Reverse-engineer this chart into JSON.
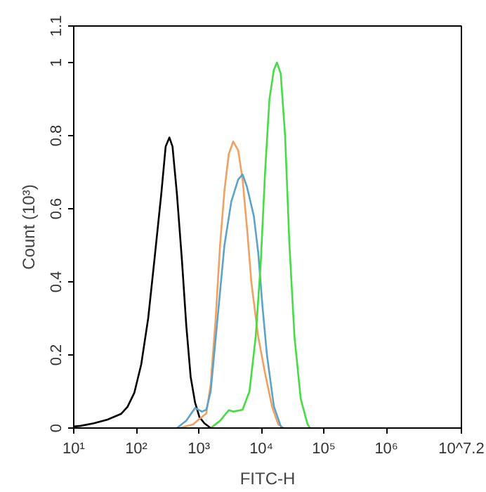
{
  "chart_data": {
    "type": "line",
    "xlabel": "FITC-H",
    "ylabel": "Count (10³)",
    "log": "x",
    "grid": false,
    "marker": "none",
    "line_style": "solid",
    "xlim": [
      10,
      15848932
    ],
    "ylim": [
      0,
      1.1
    ],
    "xticks": [
      {
        "value": 10,
        "label": "10¹"
      },
      {
        "value": 100,
        "label": "10²"
      },
      {
        "value": 1000,
        "label": "10³"
      },
      {
        "value": 10000,
        "label": "10⁴"
      },
      {
        "value": 100000,
        "label": "10⁵"
      },
      {
        "value": 1000000,
        "label": "10⁶"
      },
      {
        "value": 15848932,
        "label": "10^7.2"
      }
    ],
    "yticks": [
      0,
      0.2,
      0.4,
      0.6,
      0.8,
      1,
      1.1
    ],
    "series": [
      {
        "color": "#000000",
        "x": [
          10,
          12.9,
          20.9,
          34.7,
          57.5,
          72.4,
          93.3,
          120,
          155,
          195,
          251,
          295,
          339,
          380,
          447,
          537,
          631,
          741,
          871,
          1023,
          1230,
          1549
        ],
        "values": [
          0.004,
          0.006,
          0.013,
          0.023,
          0.039,
          0.058,
          0.097,
          0.174,
          0.3,
          0.46,
          0.64,
          0.77,
          0.795,
          0.77,
          0.64,
          0.46,
          0.28,
          0.14,
          0.07,
          0.03,
          0.013,
          0
        ]
      },
      {
        "color": "#f0a060",
        "x": [
          490,
          813,
          1023,
          1318,
          1549,
          1862,
          2188,
          2570,
          3020,
          3548,
          4266,
          5012,
          5888,
          6918,
          8913,
          11480,
          14790,
          18620,
          22390
        ],
        "values": [
          0,
          0.01,
          0.025,
          0.04,
          0.12,
          0.3,
          0.5,
          0.65,
          0.75,
          0.784,
          0.76,
          0.68,
          0.55,
          0.4,
          0.25,
          0.15,
          0.06,
          0.01,
          0
        ]
      },
      {
        "color": "#5ba3c8",
        "x": [
          447,
          631,
          871,
          1122,
          1318,
          1549,
          1995,
          2570,
          3311,
          4266,
          5012,
          5888,
          7586,
          8913,
          10470,
          12300,
          15850,
          20420,
          22390
        ],
        "values": [
          0,
          0.02,
          0.055,
          0.045,
          0.05,
          0.1,
          0.3,
          0.5,
          0.62,
          0.68,
          0.694,
          0.66,
          0.58,
          0.48,
          0.33,
          0.2,
          0.06,
          0.005,
          0
        ]
      },
      {
        "color": "#44dd44",
        "x": [
          1549,
          2188,
          3020,
          3548,
          5012,
          6457,
          8128,
          9772,
          11480,
          13490,
          15850,
          17780,
          20420,
          23990,
          28180,
          33880,
          42660,
          54950,
          60260
        ],
        "values": [
          0,
          0.02,
          0.049,
          0.045,
          0.05,
          0.1,
          0.25,
          0.45,
          0.7,
          0.9,
          0.98,
          1.0,
          0.97,
          0.8,
          0.5,
          0.25,
          0.08,
          0.01,
          0
        ]
      }
    ]
  }
}
